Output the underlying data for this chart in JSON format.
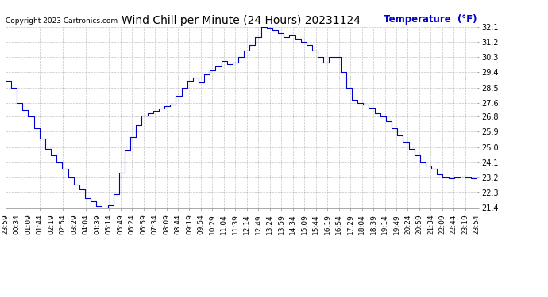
{
  "title": "Wind Chill per Minute (24 Hours) 20231124",
  "copyright": "Copyright 2023 Cartronics.com",
  "legend_label": "Temperature  (°F)",
  "line_color": "#0000cc",
  "background_color": "#ffffff",
  "grid_color": "#aaaaaa",
  "ylim": [
    21.4,
    32.1
  ],
  "yticks": [
    21.4,
    22.3,
    23.2,
    24.1,
    25.0,
    25.9,
    26.8,
    27.6,
    28.5,
    29.4,
    30.3,
    31.2,
    32.1
  ],
  "x_labels": [
    "23:59",
    "00:34",
    "01:09",
    "01:44",
    "02:19",
    "02:54",
    "03:29",
    "04:04",
    "04:39",
    "05:14",
    "05:49",
    "06:24",
    "06:59",
    "07:34",
    "08:09",
    "08:44",
    "09:19",
    "09:54",
    "10:29",
    "11:04",
    "11:39",
    "12:14",
    "12:49",
    "13:24",
    "13:59",
    "14:34",
    "15:09",
    "15:44",
    "16:19",
    "16:54",
    "17:29",
    "18:04",
    "18:39",
    "19:14",
    "19:49",
    "20:24",
    "20:59",
    "21:34",
    "22:09",
    "22:44",
    "23:19",
    "23:54"
  ],
  "data_y": [
    28.9,
    28.5,
    27.6,
    27.2,
    26.8,
    26.1,
    25.5,
    24.9,
    24.5,
    24.1,
    23.7,
    23.2,
    22.8,
    22.5,
    22.0,
    21.8,
    21.5,
    21.4,
    21.55,
    22.2,
    23.5,
    24.8,
    25.6,
    26.3,
    26.85,
    27.0,
    27.15,
    27.25,
    27.4,
    27.5,
    28.0,
    28.5,
    28.9,
    29.1,
    28.8,
    29.3,
    29.5,
    29.8,
    30.1,
    29.9,
    30.0,
    30.3,
    30.7,
    31.0,
    31.5,
    32.1,
    32.05,
    31.9,
    31.7,
    31.5,
    31.6,
    31.4,
    31.2,
    31.0,
    30.7,
    30.3,
    30.0,
    30.3,
    30.3,
    29.4,
    28.5,
    27.8,
    27.6,
    27.5,
    27.3,
    27.0,
    26.8,
    26.5,
    26.1,
    25.7,
    25.3,
    24.9,
    24.5,
    24.1,
    23.9,
    23.7,
    23.4,
    23.2,
    23.15,
    23.2,
    23.25,
    23.2,
    23.15,
    23.25
  ],
  "figsize": [
    6.9,
    3.75
  ],
  "dpi": 100,
  "title_fontsize": 10,
  "copyright_fontsize": 6.5,
  "legend_fontsize": 8.5,
  "tick_fontsize": 6.5,
  "ytick_fontsize": 7
}
